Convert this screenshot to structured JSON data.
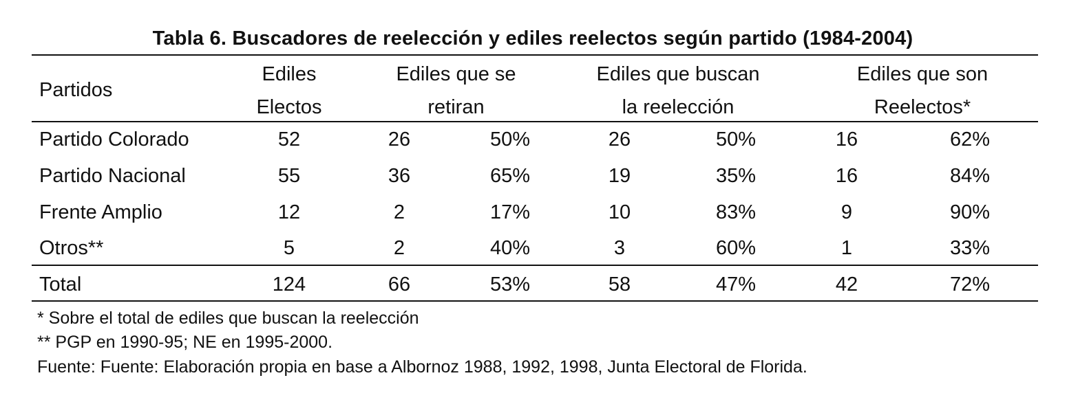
{
  "title": "Tabla 6. Buscadores de reelección y ediles reelectos según partido (1984-2004)",
  "headers": {
    "partidos": "Partidos",
    "electos_1": "Ediles",
    "electos_2": "Electos",
    "retiran_1": "Ediles que se",
    "retiran_2": "retiran",
    "buscan_1": "Ediles que buscan",
    "buscan_2": "la reelección",
    "reelectos_1": "Ediles que son",
    "reelectos_2": "Reelectos*"
  },
  "rows": [
    {
      "partido": "Partido Colorado",
      "electos": "52",
      "retiran_n": "26",
      "retiran_pct": "50%",
      "buscan_n": "26",
      "buscan_pct": "50%",
      "reelectos_n": "16",
      "reelectos_pct": "62%"
    },
    {
      "partido": "Partido Nacional",
      "electos": "55",
      "retiran_n": "36",
      "retiran_pct": "65%",
      "buscan_n": "19",
      "buscan_pct": "35%",
      "reelectos_n": "16",
      "reelectos_pct": "84%"
    },
    {
      "partido": "Frente Amplio",
      "electos": "12",
      "retiran_n": "2",
      "retiran_pct": "17%",
      "buscan_n": "10",
      "buscan_pct": "83%",
      "reelectos_n": "9",
      "reelectos_pct": "90%"
    },
    {
      "partido": "Otros**",
      "electos": "5",
      "retiran_n": "2",
      "retiran_pct": "40%",
      "buscan_n": "3",
      "buscan_pct": "60%",
      "reelectos_n": "1",
      "reelectos_pct": "33%"
    }
  ],
  "total": {
    "partido": "Total",
    "electos": "124",
    "retiran_n": "66",
    "retiran_pct": "53%",
    "buscan_n": "58",
    "buscan_pct": "47%",
    "reelectos_n": "42",
    "reelectos_pct": "72%"
  },
  "notes": {
    "note1": "* Sobre el total de ediles que buscan la reelección",
    "note2": "** PGP en 1990-95; NE en 1995-2000.",
    "source": "Fuente: Fuente: Elaboración propia en base a Albornoz 1988, 1992, 1998, Junta Electoral de Florida."
  }
}
